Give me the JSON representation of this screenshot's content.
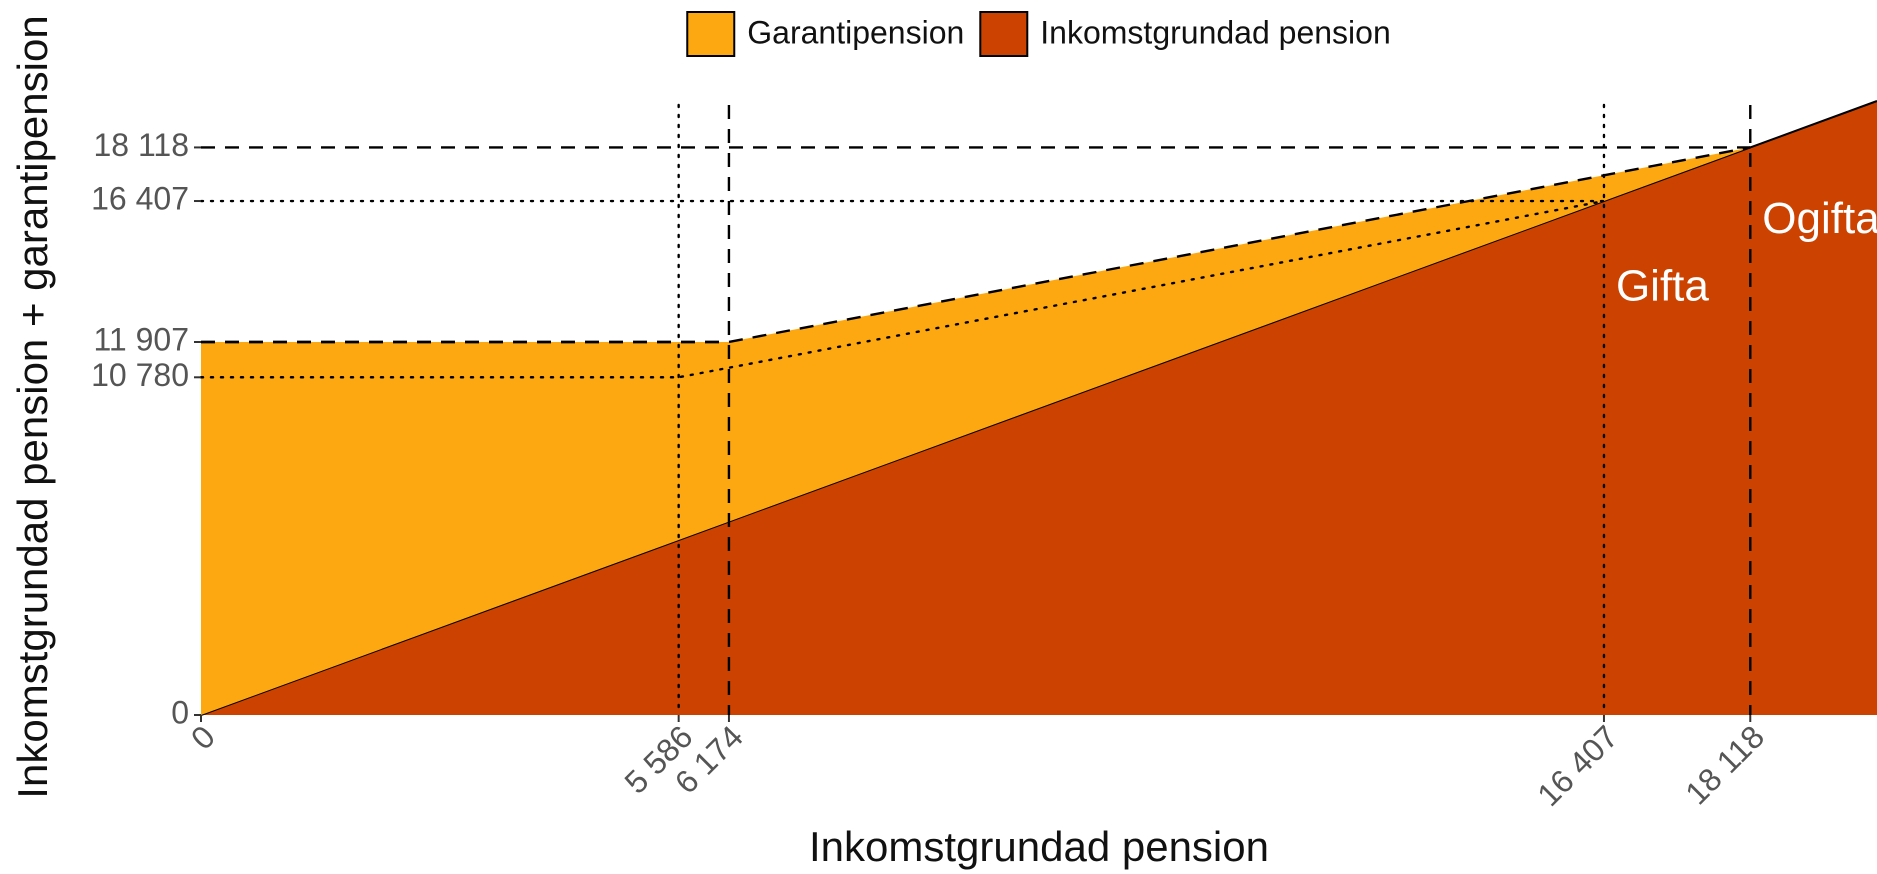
{
  "chart_data": {
    "type": "area",
    "x_label": "Inkomstgrundad pension",
    "y_label": "Inkomstgrundad pension + garantipension",
    "x": [
      0,
      6174,
      18118,
      19600
    ],
    "series": [
      {
        "name": "Inkomstgrundad pension",
        "color": "#cc4200",
        "values": [
          0,
          6174,
          18118,
          19600
        ]
      },
      {
        "name": "Garantipension",
        "color": "#fea811",
        "values": [
          11907,
          5733,
          0,
          0
        ]
      }
    ],
    "stacked": true,
    "xlim": [
      0,
      19600
    ],
    "ylim": [
      0,
      19600
    ],
    "xticks": [
      0,
      {
        "value": 5586,
        "label": "5 586"
      },
      {
        "value": 6174,
        "label": "6 174"
      },
      {
        "value": 16407,
        "label": "16 407"
      },
      {
        "value": 18118,
        "label": "18 118"
      }
    ],
    "yticks": [
      0,
      {
        "value": 10780,
        "label": "10 780"
      },
      {
        "value": 11907,
        "label": "11 907"
      },
      {
        "value": 16407,
        "label": "16 407"
      },
      {
        "value": 18118,
        "label": "18 118"
      }
    ],
    "guides": [
      {
        "name": "Gifta",
        "style": "dotted",
        "x": [
          0,
          5586,
          16407
        ],
        "y": [
          10780,
          10780,
          16407
        ]
      },
      {
        "name": "Ogifta",
        "style": "dashed",
        "x": [
          0,
          6174,
          18118
        ],
        "y": [
          11907,
          11907,
          18118
        ]
      }
    ],
    "legend": "top"
  }
}
